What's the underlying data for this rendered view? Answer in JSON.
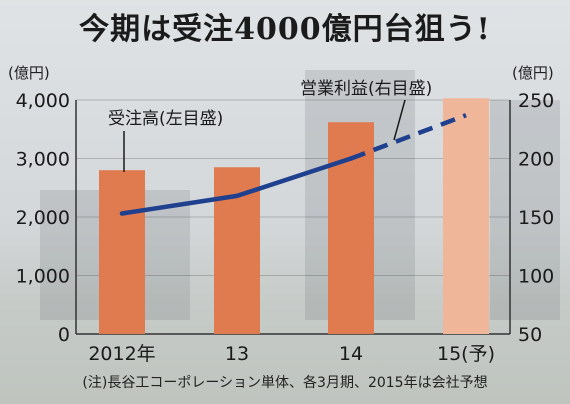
{
  "title": "今期は受注4000億円台狙う!",
  "caption": "(注)長谷工コーポレーション単体、各3月期、2015年は会社予想",
  "colors": {
    "bar": "#e07a4f",
    "bar_forecast": "#f0b69a",
    "line": "#1f3f8f"
  },
  "chart_data": {
    "type": "bar",
    "categories": [
      "2012年",
      "13",
      "14",
      "15(予)"
    ],
    "left_axis": {
      "unit_label": "(億円)",
      "ticks": [
        "4,000",
        "3,000",
        "2,000",
        "1,000",
        "0"
      ],
      "tick_values": [
        4000,
        3000,
        2000,
        1000,
        0
      ],
      "ylim": [
        0,
        4000
      ]
    },
    "right_axis": {
      "unit_label": "(億円)",
      "ticks": [
        "250",
        "200",
        "150",
        "100",
        "50"
      ],
      "tick_values": [
        250,
        200,
        150,
        100,
        50
      ],
      "ylim": [
        50,
        250
      ]
    },
    "series": [
      {
        "name": "受注高(左目盛)",
        "type": "bar",
        "axis": "left",
        "values": [
          2800,
          2850,
          3620,
          4030
        ],
        "forecast_index": 3
      },
      {
        "name": "営業利益(右目盛)",
        "type": "line",
        "axis": "right",
        "values": [
          153,
          168,
          200,
          237
        ],
        "forecast_from_index": 2
      }
    ]
  }
}
